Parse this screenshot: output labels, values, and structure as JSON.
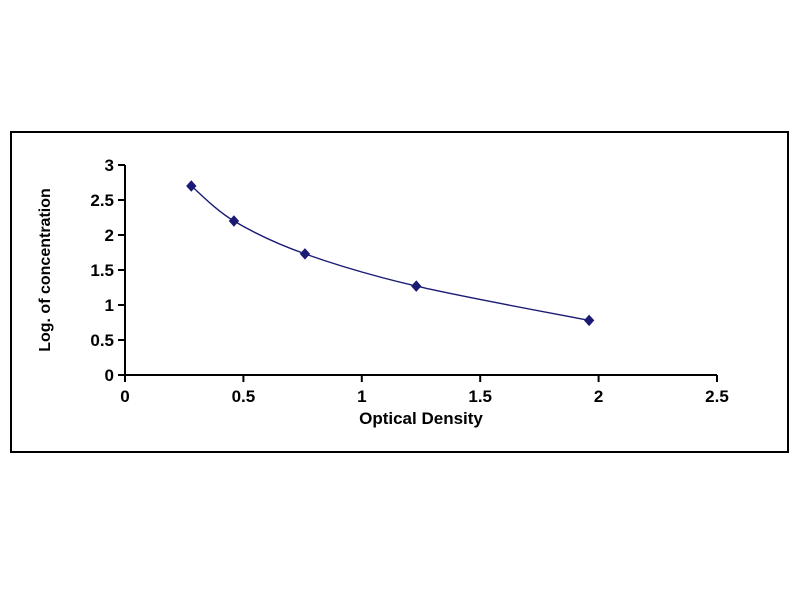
{
  "figure": {
    "background": "#ffffff",
    "border_color": "#000000"
  },
  "chart_data": {
    "type": "line",
    "title": "",
    "xlabel": "Optical Density",
    "ylabel": "Log. of concentration",
    "x": [
      0.28,
      0.46,
      0.76,
      1.23,
      1.96
    ],
    "y": [
      2.7,
      2.2,
      1.73,
      1.27,
      0.78
    ],
    "xlim": [
      0,
      2.5
    ],
    "ylim": [
      0,
      3
    ],
    "xticks": [
      0,
      0.5,
      1,
      1.5,
      2,
      2.5
    ],
    "yticks": [
      0,
      0.5,
      1,
      1.5,
      2,
      2.5,
      3
    ],
    "grid": false,
    "legend": false,
    "marker": "diamond",
    "line_color": "#1b1b75",
    "marker_color": "#1b1b75",
    "axis_color": "#000000"
  }
}
